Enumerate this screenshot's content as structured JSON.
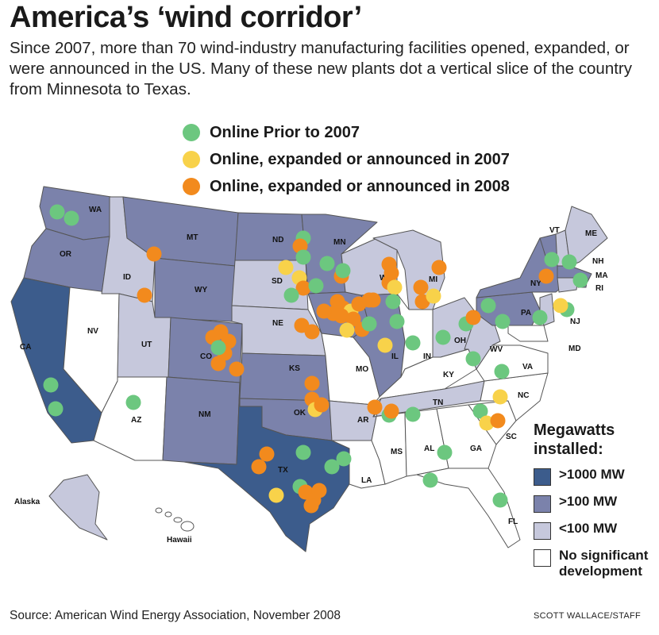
{
  "title": "America’s ‘wind corridor’",
  "subtitle": "Since 2007, more than 70 wind-industry manufacturing facilities opened, expanded, or were announced in the US. Many of these new plants dot a vertical slice of the country from Minnesota to Texas.",
  "dot_legend": [
    {
      "label": "Online Prior to 2007",
      "color": "#6cc77f"
    },
    {
      "label": "Online, expanded or announced in 2007",
      "color": "#f8d24a"
    },
    {
      "label": "Online, expanded or announced in 2008",
      "color": "#f28a1d"
    }
  ],
  "mw_legend": {
    "title": "Megawatts installed:",
    "items": [
      {
        "label": ">1000 MW",
        "color": "#3c5c8c"
      },
      {
        "label": ">100 MW",
        "color": "#7b82ab"
      },
      {
        "label": "<100 MW",
        "color": "#c6c8dc"
      },
      {
        "label": "No significant development",
        "color": "#ffffff"
      }
    ]
  },
  "state_labels": [
    "WA",
    "OR",
    "CA",
    "NV",
    "ID",
    "MT",
    "WY",
    "UT",
    "AZ",
    "CO",
    "NM",
    "ND",
    "SD",
    "NE",
    "KS",
    "OK",
    "TX",
    "MN",
    "IA",
    "MO",
    "AR",
    "LA",
    "WI",
    "IL",
    "MS",
    "MI",
    "IN",
    "KY",
    "TN",
    "AL",
    "OH",
    "WV",
    "GA",
    "FL",
    "VA",
    "NC",
    "SC",
    "PA",
    "NY",
    "VT",
    "NH",
    "ME",
    "MA",
    "RI",
    "NJ",
    "MD",
    "Alaska",
    "Hawaii"
  ],
  "source": "Source: American Wind Energy Association, November 2008",
  "credit": "SCOTT WALLACE/STAFF"
}
